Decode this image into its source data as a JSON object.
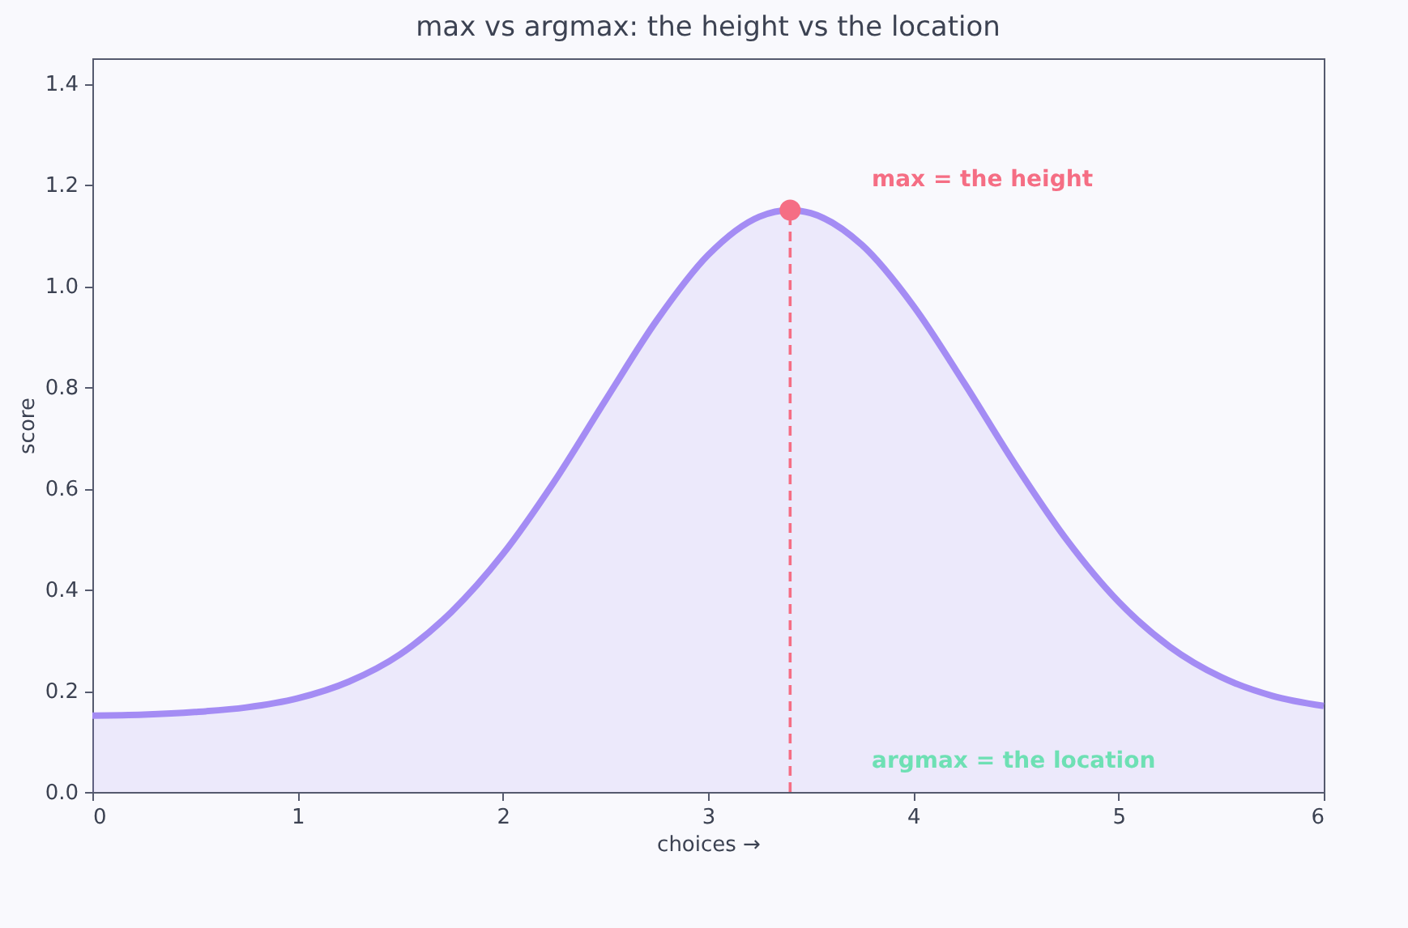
{
  "chart_data": {
    "type": "area",
    "title": "max vs argmax: the height vs the location",
    "xlabel": "choices  →",
    "ylabel": "score",
    "xlim": [
      0,
      6
    ],
    "xticks": [
      0,
      1,
      2,
      3,
      4,
      5,
      6
    ],
    "ylim": [
      0,
      1.45
    ],
    "yticks": [
      {
        "value": 0,
        "label": "0.0"
      },
      {
        "value": 0.2,
        "label": "0.2"
      },
      {
        "value": 0.4,
        "label": "0.4"
      },
      {
        "value": 0.6,
        "label": "0.6"
      },
      {
        "value": 0.8,
        "label": "0.8"
      },
      {
        "value": 1,
        "label": "1.0"
      },
      {
        "value": 1.2,
        "label": "1.2"
      },
      {
        "value": 1.4,
        "label": "1.4"
      }
    ],
    "grid": false,
    "series": [
      {
        "color": "#a48cf4",
        "x": [
          0,
          0.25,
          0.5,
          0.75,
          1,
          1.25,
          1.5,
          1.75,
          2,
          2.25,
          2.5,
          2.75,
          3,
          3.25,
          3.4,
          3.5,
          3.75,
          4,
          4.25,
          4.5,
          4.75,
          5,
          5.25,
          5.5,
          5.75,
          6
        ],
        "values": [
          0.151,
          0.153,
          0.158,
          0.167,
          0.185,
          0.218,
          0.272,
          0.356,
          0.47,
          0.613,
          0.774,
          0.932,
          1.061,
          1.137,
          1.15,
          1.144,
          1.081,
          0.961,
          0.807,
          0.645,
          0.497,
          0.376,
          0.287,
          0.227,
          0.19,
          0.17
        ]
      },
      {
        "type": "line",
        "color": "#f56e84",
        "line_style": "dashed",
        "x": [
          3.4,
          3.4
        ],
        "values": [
          0,
          1.15
        ]
      },
      {
        "type": "scatter",
        "color": "#f56e84",
        "marker": "circle",
        "x": [
          3.4
        ],
        "values": [
          1.15
        ]
      }
    ],
    "annotations": [
      "max = the height",
      "argmax = the location"
    ]
  }
}
